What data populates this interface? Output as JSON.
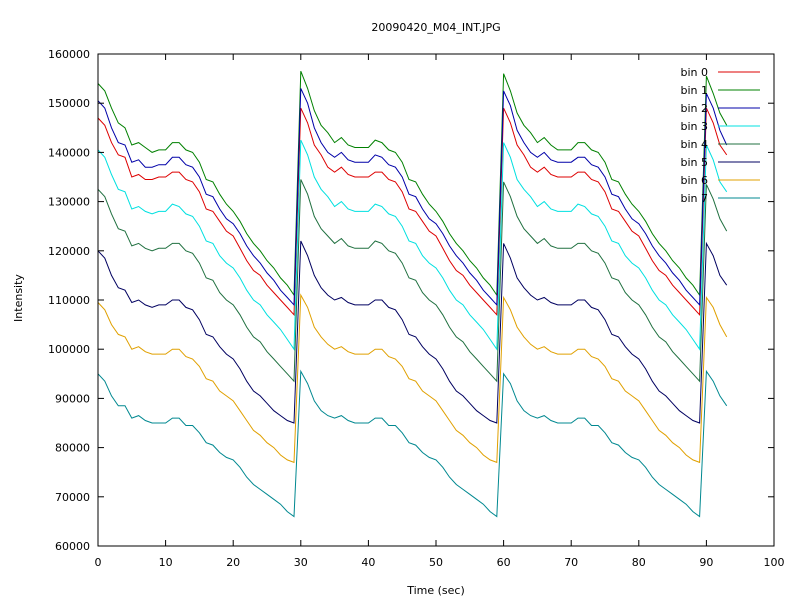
{
  "chart_data": {
    "type": "line",
    "title": "20090420_M04_INT.JPG",
    "xlabel": "Time (sec)",
    "ylabel": "Intensity",
    "xlim": [
      0,
      100
    ],
    "ylim": [
      60000,
      160000
    ],
    "xticks": [
      0,
      10,
      20,
      30,
      40,
      50,
      60,
      70,
      80,
      90,
      100
    ],
    "yticks": [
      60000,
      70000,
      80000,
      90000,
      100000,
      110000,
      120000,
      130000,
      140000,
      150000,
      160000
    ],
    "grid": false,
    "legend_position": "top-right",
    "x": [
      0,
      1,
      2,
      3,
      4,
      5,
      6,
      7,
      8,
      9,
      10,
      11,
      12,
      13,
      14,
      15,
      16,
      17,
      18,
      19,
      20,
      21,
      22,
      23,
      24,
      25,
      26,
      27,
      28,
      29,
      30,
      31,
      32,
      33,
      34,
      35,
      36,
      37,
      38,
      39,
      40,
      41,
      42,
      43,
      44,
      45,
      46,
      47,
      48,
      49,
      50,
      51,
      52,
      53,
      54,
      55,
      56,
      57,
      58,
      59,
      60,
      61,
      62,
      63,
      64,
      65,
      66,
      67,
      68,
      69,
      70,
      71,
      72,
      73,
      74,
      75,
      76,
      77,
      78,
      79,
      80,
      81,
      82,
      83,
      84,
      85,
      86,
      87,
      88,
      89,
      90,
      91,
      92,
      93
    ],
    "series": [
      {
        "name": "bin 0",
        "color": "#dd0000",
        "values": [
          147000,
          145500,
          142000,
          139500,
          139000,
          135000,
          135500,
          134500,
          134500,
          135000,
          135000,
          136000,
          136000,
          134500,
          134000,
          132000,
          128500,
          128000,
          126000,
          124000,
          123000,
          120500,
          118000,
          116000,
          115000,
          113000,
          111500,
          110000,
          108500,
          107000,
          149000,
          146000,
          141500,
          139500,
          137000,
          136000,
          137000,
          135500,
          135000,
          135000,
          135000,
          136000,
          136000,
          134500,
          134000,
          132000,
          128500,
          128000,
          126000,
          124000,
          123000,
          120500,
          118000,
          116000,
          115000,
          113000,
          111500,
          110000,
          108500,
          107000,
          149000,
          146000,
          141500,
          139500,
          137000,
          136000,
          137000,
          135500,
          135000,
          135000,
          135000,
          136000,
          136000,
          134500,
          134000,
          132000,
          128500,
          128000,
          126000,
          124000,
          123000,
          120500,
          118000,
          116000,
          115000,
          113000,
          111500,
          110000,
          108500,
          107000,
          149000,
          146000,
          141500,
          139500
        ]
      },
      {
        "name": "bin 1",
        "color": "#008000",
        "values": [
          154000,
          152500,
          149000,
          146000,
          145000,
          141500,
          142000,
          141000,
          140000,
          140500,
          140500,
          142000,
          142000,
          140500,
          140000,
          138000,
          134500,
          134000,
          131500,
          129500,
          128000,
          126000,
          123500,
          121500,
          120000,
          118000,
          116500,
          114500,
          113000,
          111000,
          156500,
          153000,
          148500,
          145500,
          144000,
          142000,
          143000,
          141500,
          141000,
          141000,
          141000,
          142500,
          142000,
          140500,
          140000,
          138000,
          134500,
          134000,
          131500,
          129500,
          128000,
          126000,
          123500,
          121500,
          120000,
          118000,
          116500,
          114500,
          113000,
          111000,
          156000,
          152500,
          148000,
          145500,
          144000,
          142000,
          143000,
          141500,
          140500,
          140500,
          140500,
          142000,
          142000,
          140500,
          140000,
          138000,
          134500,
          134000,
          131500,
          129500,
          128000,
          126000,
          123500,
          121500,
          120000,
          118000,
          116500,
          114500,
          113000,
          111000,
          155500,
          152000,
          148000,
          145500
        ]
      },
      {
        "name": "bin 2",
        "color": "#0000a8",
        "values": [
          150500,
          149000,
          145000,
          142000,
          141500,
          138000,
          138500,
          137000,
          137000,
          137500,
          137500,
          139000,
          139000,
          137500,
          137000,
          135000,
          131500,
          131000,
          128500,
          126500,
          125500,
          123500,
          121000,
          119000,
          117500,
          115500,
          114000,
          112000,
          110500,
          109000,
          153000,
          150000,
          145000,
          142000,
          140000,
          139000,
          140000,
          138500,
          138000,
          138000,
          138000,
          139500,
          139000,
          137500,
          137000,
          135000,
          131500,
          131000,
          128500,
          126500,
          125500,
          123500,
          121000,
          119000,
          117500,
          115500,
          114000,
          112000,
          110500,
          109000,
          152500,
          149500,
          144500,
          142000,
          140000,
          139000,
          140000,
          138500,
          138000,
          138000,
          138000,
          139000,
          139000,
          137500,
          137000,
          135000,
          131500,
          131000,
          128500,
          126500,
          125500,
          123500,
          121000,
          119000,
          117500,
          115500,
          114000,
          112000,
          110500,
          109000,
          152000,
          149000,
          144500,
          141500
        ]
      },
      {
        "name": "bin 3",
        "color": "#00e0e0",
        "values": [
          140500,
          139000,
          135500,
          132500,
          132000,
          128500,
          129000,
          128000,
          127500,
          128000,
          128000,
          129500,
          129000,
          127500,
          127000,
          125000,
          122000,
          121500,
          119000,
          117500,
          116500,
          114500,
          112000,
          110000,
          109000,
          107000,
          105500,
          104000,
          102000,
          100000,
          142500,
          139500,
          135000,
          132500,
          131000,
          129000,
          130000,
          128500,
          128000,
          128000,
          128000,
          129500,
          129000,
          127500,
          127000,
          125000,
          122000,
          121500,
          119000,
          117500,
          116500,
          114500,
          112000,
          110000,
          109000,
          107000,
          105500,
          104000,
          102000,
          100000,
          142000,
          139000,
          134500,
          132500,
          131000,
          129000,
          130000,
          128500,
          128000,
          128000,
          128000,
          129500,
          129000,
          127500,
          127000,
          125000,
          122000,
          121500,
          119000,
          117500,
          116500,
          114500,
          112000,
          110000,
          109000,
          107000,
          105500,
          104000,
          102000,
          100000,
          141500,
          138500,
          134000,
          132000
        ]
      },
      {
        "name": "bin 4",
        "color": "#207040",
        "values": [
          132500,
          131000,
          127500,
          124500,
          124000,
          121000,
          121500,
          120500,
          120000,
          120500,
          120500,
          121500,
          121500,
          120000,
          119500,
          117500,
          114500,
          114000,
          111500,
          110000,
          109000,
          107000,
          104500,
          102500,
          101500,
          99500,
          98000,
          96500,
          95000,
          93500,
          134500,
          131500,
          127000,
          124500,
          123000,
          121500,
          122500,
          121000,
          120500,
          120500,
          120500,
          122000,
          121500,
          120000,
          119500,
          117500,
          114500,
          114000,
          111500,
          110000,
          109000,
          107000,
          104500,
          102500,
          101500,
          99500,
          98000,
          96500,
          95000,
          93500,
          134000,
          131000,
          127000,
          124500,
          123000,
          121500,
          122500,
          121000,
          120500,
          120500,
          120500,
          121500,
          121500,
          120000,
          119500,
          117500,
          114500,
          114000,
          111500,
          110000,
          109000,
          107000,
          104500,
          102500,
          101500,
          99500,
          98000,
          96500,
          95000,
          93500,
          133500,
          130500,
          126500,
          124000
        ]
      },
      {
        "name": "bin 5",
        "color": "#000060",
        "values": [
          120000,
          118500,
          115000,
          112500,
          112000,
          109500,
          110000,
          109000,
          108500,
          109000,
          109000,
          110000,
          110000,
          108500,
          108000,
          106000,
          103000,
          102500,
          100500,
          99000,
          98000,
          96000,
          93500,
          91500,
          90500,
          89000,
          87500,
          86500,
          85500,
          85000,
          122000,
          119000,
          115000,
          112500,
          111000,
          110000,
          110500,
          109500,
          109000,
          109000,
          109000,
          110000,
          110000,
          108500,
          108000,
          106000,
          103000,
          102500,
          100500,
          99000,
          98000,
          96000,
          93500,
          91500,
          90500,
          89000,
          87500,
          86500,
          85500,
          85000,
          121500,
          118500,
          114500,
          112500,
          111000,
          110000,
          110500,
          109500,
          109000,
          109000,
          109000,
          110000,
          110000,
          108500,
          108000,
          106000,
          103000,
          102500,
          100500,
          99000,
          98000,
          96000,
          93500,
          91500,
          90500,
          89000,
          87500,
          86500,
          85500,
          85000,
          121500,
          119000,
          115000,
          113000
        ]
      },
      {
        "name": "bin 6",
        "color": "#e0a000",
        "values": [
          109500,
          108000,
          105000,
          103000,
          102500,
          100000,
          100500,
          99500,
          99000,
          99000,
          99000,
          100000,
          100000,
          98500,
          98000,
          96500,
          94000,
          93500,
          91500,
          90500,
          89500,
          87500,
          85500,
          83500,
          82500,
          81000,
          80000,
          78500,
          77500,
          77000,
          111000,
          108500,
          104500,
          102500,
          101000,
          100000,
          100500,
          99500,
          99000,
          99000,
          99000,
          100000,
          100000,
          98500,
          98000,
          96500,
          94000,
          93500,
          91500,
          90500,
          89500,
          87500,
          85500,
          83500,
          82500,
          81000,
          80000,
          78500,
          77500,
          77000,
          110500,
          108000,
          104500,
          102500,
          101000,
          100000,
          100500,
          99500,
          99000,
          99000,
          99000,
          100000,
          100000,
          98500,
          98000,
          96500,
          94000,
          93500,
          91500,
          90500,
          89500,
          87500,
          85500,
          83500,
          82500,
          81000,
          80000,
          78500,
          77500,
          77000,
          110500,
          108500,
          105000,
          102500
        ]
      },
      {
        "name": "bin 7",
        "color": "#008890",
        "values": [
          95000,
          93500,
          90500,
          88500,
          88500,
          86000,
          86500,
          85500,
          85000,
          85000,
          85000,
          86000,
          86000,
          84500,
          84500,
          83000,
          81000,
          80500,
          79000,
          78000,
          77500,
          76000,
          74000,
          72500,
          71500,
          70500,
          69500,
          68500,
          67000,
          66000,
          95500,
          93000,
          89500,
          87500,
          86500,
          86000,
          86500,
          85500,
          85000,
          85000,
          85000,
          86000,
          86000,
          84500,
          84500,
          83000,
          81000,
          80500,
          79000,
          78000,
          77500,
          76000,
          74000,
          72500,
          71500,
          70500,
          69500,
          68500,
          67000,
          66000,
          95000,
          93000,
          89500,
          87500,
          86500,
          86000,
          86500,
          85500,
          85000,
          85000,
          85000,
          86000,
          86000,
          84500,
          84500,
          83000,
          81000,
          80500,
          79000,
          78000,
          77500,
          76000,
          74000,
          72500,
          71500,
          70500,
          69500,
          68500,
          67000,
          66000,
          95500,
          93500,
          90500,
          88500
        ]
      }
    ]
  }
}
